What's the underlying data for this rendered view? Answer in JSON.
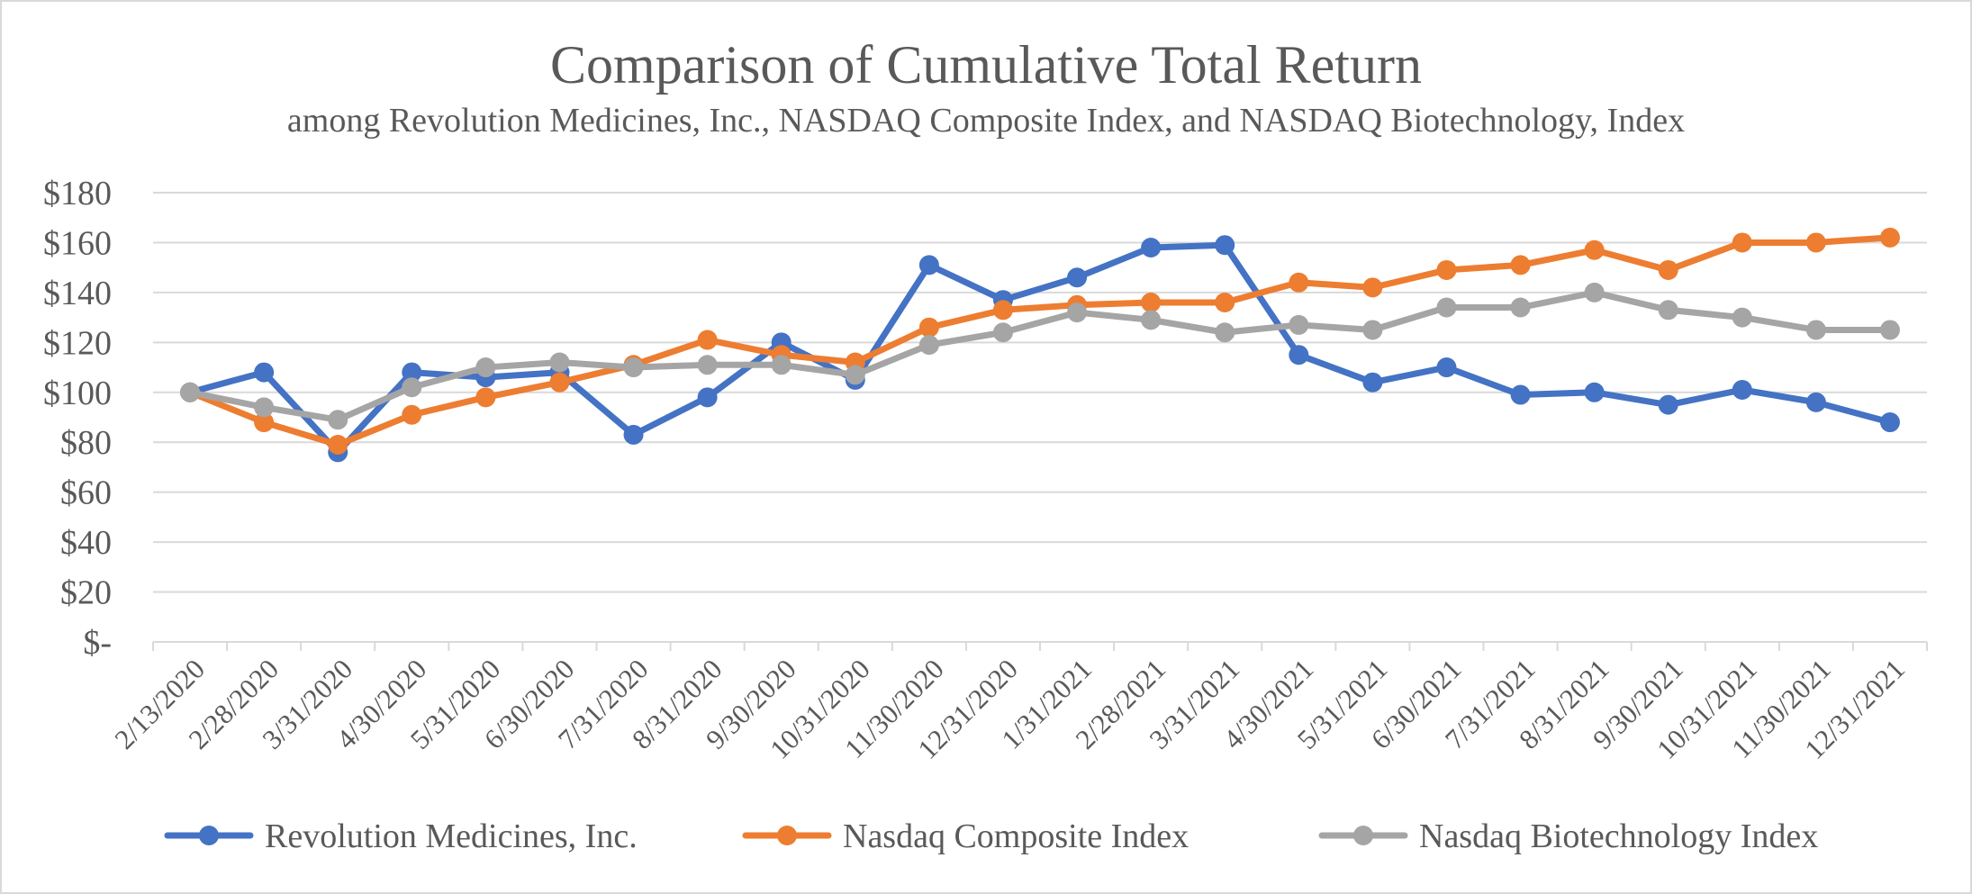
{
  "chart_data": {
    "type": "line",
    "title": "Comparison of Cumulative Total Return",
    "subtitle": "among Revolution Medicines, Inc., NASDAQ Composite Index, and NASDAQ Biotechnology, Index",
    "xlabel": "",
    "ylabel": "",
    "categories": [
      "2/13/2020",
      "2/28/2020",
      "3/31/2020",
      "4/30/2020",
      "5/31/2020",
      "6/30/2020",
      "7/31/2020",
      "8/31/2020",
      "9/30/2020",
      "10/31/2020",
      "11/30/2020",
      "12/31/2020",
      "1/31/2021",
      "2/28/2021",
      "3/31/2021",
      "4/30/2021",
      "5/31/2021",
      "6/30/2021",
      "7/31/2021",
      "8/31/2021",
      "9/30/2021",
      "10/31/2021",
      "11/30/2021",
      "12/31/2021"
    ],
    "ylim": [
      0,
      180
    ],
    "yticks": [
      0,
      20,
      40,
      60,
      80,
      100,
      120,
      140,
      160,
      180
    ],
    "ytick_labels": [
      "$-",
      "$20",
      "$40",
      "$60",
      "$80",
      "$100",
      "$120",
      "$140",
      "$160",
      "$180"
    ],
    "grid": true,
    "legend_position": "bottom",
    "series": [
      {
        "name": "Revolution Medicines, Inc.",
        "color": "#4472c4",
        "values": [
          100,
          108,
          76,
          108,
          106,
          108,
          83,
          98,
          120,
          105,
          151,
          137,
          146,
          158,
          159,
          115,
          104,
          110,
          99,
          100,
          95,
          101,
          96,
          88
        ]
      },
      {
        "name": "Nasdaq Composite Index",
        "color": "#ed7d31",
        "values": [
          100,
          88,
          79,
          91,
          98,
          104,
          111,
          121,
          115,
          112,
          126,
          133,
          135,
          136,
          136,
          144,
          142,
          149,
          151,
          157,
          149,
          160,
          160,
          162
        ]
      },
      {
        "name": "Nasdaq Biotechnology Index",
        "color": "#a5a5a5",
        "values": [
          100,
          94,
          89,
          102,
          110,
          112,
          110,
          111,
          111,
          107,
          119,
          124,
          132,
          129,
          124,
          127,
          125,
          134,
          134,
          140,
          133,
          130,
          125,
          125
        ]
      }
    ]
  },
  "colors": {
    "gridline": "#d9d9d9",
    "axis_text": "#595959",
    "border": "#d9d9d9"
  }
}
